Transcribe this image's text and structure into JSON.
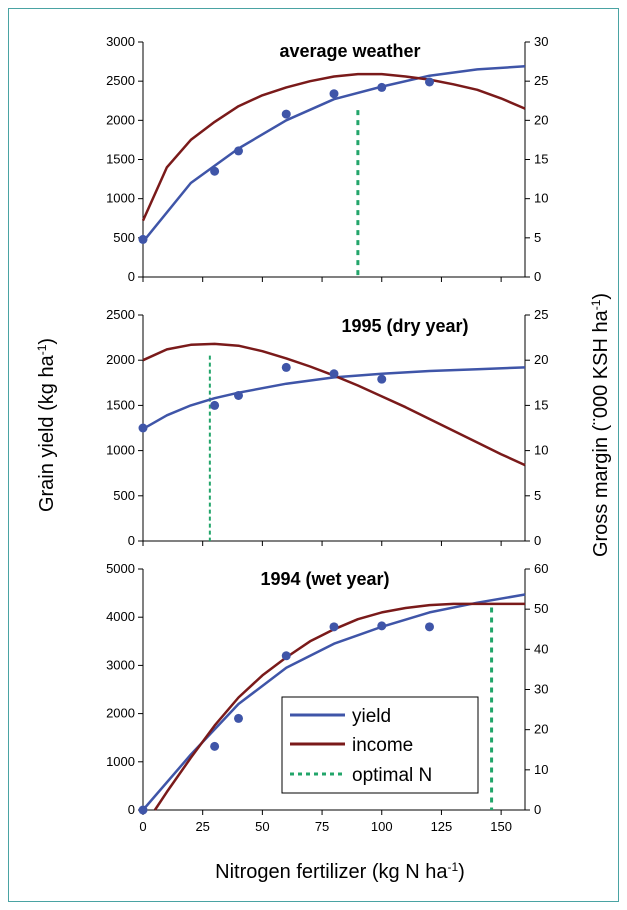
{
  "axes": {
    "ylabel_left": "Grain yield (kg ha",
    "ylabel_left_sup": "-1",
    "ylabel_left_end": ")",
    "ylabel_right": "Gross margin (¨000 KSH ha",
    "ylabel_right_sup": "-1",
    "ylabel_right_end": ")",
    "xlabel": "Nitrogen fertilizer (kg N ha",
    "xlabel_sup": "-1",
    "xlabel_end": ")"
  },
  "legend": {
    "yield": "yield",
    "income": "income",
    "optimal": "optimal N"
  },
  "colors": {
    "yield": "#3f55a8",
    "income": "#7a1a1a",
    "optimal": "#22a56a",
    "points": "#3f55a8"
  },
  "chart_data": [
    {
      "type": "line",
      "title": "average weather",
      "x_ticks": [
        0,
        25,
        50,
        75,
        100,
        125,
        150
      ],
      "xlim": [
        0,
        160
      ],
      "ylim": [
        0,
        3000
      ],
      "y_ticks": [
        0,
        500,
        1000,
        1500,
        2000,
        2500,
        3000
      ],
      "y2lim": [
        0,
        30
      ],
      "y2_ticks": [
        0,
        5,
        10,
        15,
        20,
        25,
        30
      ],
      "points": {
        "x": [
          0,
          30,
          40,
          60,
          80,
          100,
          120
        ],
        "y": [
          480,
          1350,
          1610,
          2080,
          2340,
          2420,
          2490
        ]
      },
      "series": [
        {
          "name": "yield",
          "axis": "left",
          "x": [
            0,
            20,
            40,
            60,
            80,
            100,
            120,
            140,
            160
          ],
          "y": [
            450,
            1200,
            1640,
            2000,
            2270,
            2430,
            2570,
            2650,
            2690
          ]
        },
        {
          "name": "income",
          "axis": "right",
          "x": [
            0,
            10,
            20,
            30,
            40,
            50,
            60,
            70,
            80,
            90,
            100,
            110,
            120,
            130,
            140,
            150,
            160
          ],
          "y": [
            7.2,
            14.0,
            17.5,
            19.8,
            21.8,
            23.2,
            24.2,
            25.0,
            25.6,
            25.9,
            25.9,
            25.6,
            25.2,
            24.6,
            23.9,
            22.8,
            21.5
          ]
        }
      ],
      "optimal_n": 90
    },
    {
      "type": "line",
      "title": "1995 (dry year)",
      "x_ticks": [
        0,
        25,
        50,
        75,
        100,
        125,
        150
      ],
      "xlim": [
        0,
        160
      ],
      "ylim": [
        0,
        2500
      ],
      "y_ticks": [
        0,
        500,
        1000,
        1500,
        2000,
        2500
      ],
      "y2lim": [
        0,
        25
      ],
      "y2_ticks": [
        0,
        5,
        10,
        15,
        20,
        25
      ],
      "points": {
        "x": [
          0,
          30,
          40,
          60,
          80,
          100
        ],
        "y": [
          1250,
          1500,
          1610,
          1920,
          1850,
          1790
        ]
      },
      "series": [
        {
          "name": "yield",
          "axis": "left",
          "x": [
            0,
            10,
            20,
            30,
            40,
            60,
            80,
            100,
            120,
            140,
            160
          ],
          "y": [
            1240,
            1390,
            1500,
            1580,
            1640,
            1740,
            1810,
            1850,
            1880,
            1900,
            1920
          ]
        },
        {
          "name": "income",
          "axis": "right",
          "x": [
            0,
            10,
            20,
            30,
            40,
            50,
            60,
            70,
            80,
            90,
            100,
            110,
            120,
            130,
            140,
            150,
            160
          ],
          "y": [
            20.0,
            21.2,
            21.7,
            21.8,
            21.6,
            21.0,
            20.2,
            19.3,
            18.3,
            17.2,
            16.0,
            14.8,
            13.5,
            12.2,
            10.9,
            9.6,
            8.4
          ]
        }
      ],
      "optimal_n": 28
    },
    {
      "type": "line",
      "title": "1994 (wet year)",
      "x_ticks": [
        0,
        25,
        50,
        75,
        100,
        125,
        150
      ],
      "xlim": [
        0,
        160
      ],
      "ylim": [
        0,
        5000
      ],
      "y_ticks": [
        0,
        1000,
        2000,
        3000,
        4000,
        5000
      ],
      "y2lim": [
        0,
        60
      ],
      "y2_ticks": [
        0,
        10,
        20,
        30,
        40,
        50,
        60
      ],
      "points": {
        "x": [
          0,
          30,
          40,
          60,
          80,
          100,
          120
        ],
        "y": [
          0,
          1320,
          1900,
          3200,
          3800,
          3820,
          3800
        ]
      },
      "series": [
        {
          "name": "yield",
          "axis": "left",
          "x": [
            0,
            20,
            40,
            60,
            80,
            100,
            120,
            140,
            160
          ],
          "y": [
            0,
            1150,
            2200,
            2950,
            3450,
            3800,
            4100,
            4300,
            4470
          ]
        },
        {
          "name": "income",
          "axis": "right",
          "x": [
            5,
            10,
            20,
            30,
            40,
            50,
            60,
            70,
            80,
            90,
            100,
            110,
            120,
            130,
            140,
            150,
            160
          ],
          "y": [
            0,
            4.5,
            13.0,
            21.0,
            28.0,
            33.5,
            38.0,
            42.0,
            45.0,
            47.5,
            49.2,
            50.3,
            51.0,
            51.3,
            51.3,
            51.3,
            51.3
          ]
        }
      ],
      "optimal_n": 146
    }
  ]
}
